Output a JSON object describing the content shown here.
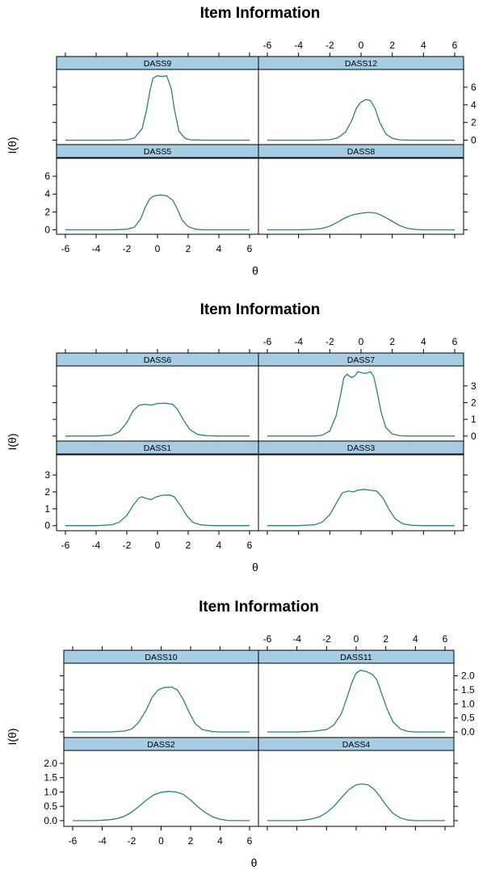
{
  "colors": {
    "strip": "#a6cde3",
    "curve": "#2e7f7b"
  },
  "chart_data": [
    {
      "type": "line",
      "title": "Item Information",
      "xlabel": "θ",
      "ylabel": "I(θ)",
      "xlim": [
        -6,
        6
      ],
      "ylim": [
        -0.5,
        8
      ],
      "x_ticks": [
        -6,
        -4,
        -2,
        0,
        2,
        4,
        6
      ],
      "x_tick_labels": [
        "-6",
        "-4",
        "-2",
        "0",
        "2",
        "4",
        "6"
      ],
      "y_ticks": [
        0,
        2,
        4,
        6
      ],
      "y_tick_labels": [
        "0",
        "2",
        "4",
        "6"
      ],
      "panels": [
        {
          "name": "DASS9",
          "position": "top-left",
          "curve": [
            [
              -6,
              0
            ],
            [
              -3,
              0
            ],
            [
              -2,
              0.04
            ],
            [
              -1.5,
              0.25
            ],
            [
              -1,
              1.3
            ],
            [
              -0.7,
              3.5
            ],
            [
              -0.5,
              5.5
            ],
            [
              -0.3,
              7.0
            ],
            [
              0,
              7.3
            ],
            [
              0.3,
              7.2
            ],
            [
              0.6,
              7.3
            ],
            [
              0.9,
              5.8
            ],
            [
              1.1,
              3.5
            ],
            [
              1.4,
              1.0
            ],
            [
              1.8,
              0.2
            ],
            [
              2.2,
              0.03
            ],
            [
              3,
              0
            ],
            [
              6,
              0
            ]
          ]
        },
        {
          "name": "DASS12",
          "position": "top-right",
          "curve": [
            [
              -6,
              0
            ],
            [
              -3,
              0
            ],
            [
              -2,
              0.05
            ],
            [
              -1.5,
              0.25
            ],
            [
              -1,
              0.9
            ],
            [
              -0.6,
              2.2
            ],
            [
              -0.3,
              3.6
            ],
            [
              0,
              4.3
            ],
            [
              0.3,
              4.6
            ],
            [
              0.6,
              4.5
            ],
            [
              0.9,
              3.6
            ],
            [
              1.2,
              2.0
            ],
            [
              1.6,
              0.7
            ],
            [
              2,
              0.2
            ],
            [
              2.5,
              0.04
            ],
            [
              3,
              0
            ],
            [
              6,
              0
            ]
          ]
        },
        {
          "name": "DASS5",
          "position": "bottom-left",
          "curve": [
            [
              -6,
              0
            ],
            [
              -3,
              0
            ],
            [
              -2,
              0.06
            ],
            [
              -1.5,
              0.3
            ],
            [
              -1.1,
              1.2
            ],
            [
              -0.8,
              2.5
            ],
            [
              -0.5,
              3.5
            ],
            [
              -0.2,
              3.8
            ],
            [
              0.2,
              3.9
            ],
            [
              0.6,
              3.8
            ],
            [
              1,
              3.3
            ],
            [
              1.3,
              2.3
            ],
            [
              1.6,
              1.1
            ],
            [
              2,
              0.35
            ],
            [
              2.5,
              0.06
            ],
            [
              3,
              0
            ],
            [
              6,
              0
            ]
          ]
        },
        {
          "name": "DASS8",
          "position": "bottom-right",
          "curve": [
            [
              -6,
              0
            ],
            [
              -4,
              0
            ],
            [
              -3,
              0.05
            ],
            [
              -2.5,
              0.15
            ],
            [
              -2,
              0.4
            ],
            [
              -1.5,
              0.85
            ],
            [
              -1,
              1.35
            ],
            [
              -0.5,
              1.7
            ],
            [
              0,
              1.85
            ],
            [
              0.5,
              1.95
            ],
            [
              1,
              1.85
            ],
            [
              1.5,
              1.45
            ],
            [
              2,
              0.95
            ],
            [
              2.5,
              0.45
            ],
            [
              3,
              0.15
            ],
            [
              3.5,
              0.04
            ],
            [
              4,
              0
            ],
            [
              6,
              0
            ]
          ]
        }
      ]
    },
    {
      "type": "line",
      "title": "Item Information",
      "xlabel": "θ",
      "ylabel": "I(θ)",
      "xlim": [
        -6,
        6
      ],
      "ylim": [
        -0.3,
        4.2
      ],
      "x_ticks": [
        -6,
        -4,
        -2,
        0,
        2,
        4,
        6
      ],
      "x_tick_labels": [
        "-6",
        "-4",
        "-2",
        "0",
        "2",
        "4",
        "6"
      ],
      "y_ticks": [
        0,
        1,
        2,
        3
      ],
      "y_tick_labels": [
        "0",
        "1",
        "2",
        "3"
      ],
      "panels": [
        {
          "name": "DASS6",
          "position": "top-left",
          "curve": [
            [
              -6,
              0
            ],
            [
              -4,
              0
            ],
            [
              -3,
              0.05
            ],
            [
              -2.5,
              0.25
            ],
            [
              -2,
              0.8
            ],
            [
              -1.6,
              1.5
            ],
            [
              -1.2,
              1.85
            ],
            [
              -0.8,
              1.9
            ],
            [
              -0.4,
              1.85
            ],
            [
              0,
              1.95
            ],
            [
              0.5,
              1.97
            ],
            [
              1,
              1.9
            ],
            [
              1.3,
              1.6
            ],
            [
              1.7,
              0.95
            ],
            [
              2.1,
              0.4
            ],
            [
              2.6,
              0.1
            ],
            [
              3.2,
              0.02
            ],
            [
              4,
              0
            ],
            [
              6,
              0
            ]
          ]
        },
        {
          "name": "DASS7",
          "position": "top-right",
          "curve": [
            [
              -6,
              0
            ],
            [
              -3,
              0
            ],
            [
              -2.5,
              0.05
            ],
            [
              -2,
              0.3
            ],
            [
              -1.6,
              1.2
            ],
            [
              -1.3,
              2.5
            ],
            [
              -1.1,
              3.5
            ],
            [
              -0.9,
              3.7
            ],
            [
              -0.6,
              3.5
            ],
            [
              -0.4,
              3.6
            ],
            [
              -0.2,
              3.85
            ],
            [
              0,
              3.8
            ],
            [
              0.3,
              3.75
            ],
            [
              0.6,
              3.85
            ],
            [
              0.8,
              3.6
            ],
            [
              1,
              2.8
            ],
            [
              1.3,
              1.4
            ],
            [
              1.6,
              0.5
            ],
            [
              2,
              0.12
            ],
            [
              2.5,
              0.02
            ],
            [
              3,
              0
            ],
            [
              6,
              0
            ]
          ]
        },
        {
          "name": "DASS1",
          "position": "bottom-left",
          "curve": [
            [
              -6,
              0
            ],
            [
              -4,
              0
            ],
            [
              -3,
              0.05
            ],
            [
              -2.5,
              0.2
            ],
            [
              -2,
              0.6
            ],
            [
              -1.6,
              1.2
            ],
            [
              -1.2,
              1.65
            ],
            [
              -1,
              1.7
            ],
            [
              -0.7,
              1.6
            ],
            [
              -0.4,
              1.55
            ],
            [
              -0.1,
              1.7
            ],
            [
              0.3,
              1.8
            ],
            [
              0.8,
              1.82
            ],
            [
              1.1,
              1.7
            ],
            [
              1.5,
              1.2
            ],
            [
              1.9,
              0.6
            ],
            [
              2.3,
              0.2
            ],
            [
              2.8,
              0.05
            ],
            [
              3.5,
              0
            ],
            [
              6,
              0
            ]
          ]
        },
        {
          "name": "DASS3",
          "position": "bottom-right",
          "curve": [
            [
              -6,
              0
            ],
            [
              -4,
              0
            ],
            [
              -3,
              0.05
            ],
            [
              -2.5,
              0.2
            ],
            [
              -2,
              0.65
            ],
            [
              -1.6,
              1.3
            ],
            [
              -1.2,
              1.95
            ],
            [
              -0.8,
              2.05
            ],
            [
              -0.5,
              2.0
            ],
            [
              -0.2,
              2.1
            ],
            [
              0.2,
              2.15
            ],
            [
              0.6,
              2.1
            ],
            [
              1,
              2.05
            ],
            [
              1.4,
              1.65
            ],
            [
              1.8,
              0.95
            ],
            [
              2.2,
              0.4
            ],
            [
              2.7,
              0.1
            ],
            [
              3.3,
              0.02
            ],
            [
              4,
              0
            ],
            [
              6,
              0
            ]
          ]
        }
      ]
    },
    {
      "type": "line",
      "title": "Item Information",
      "xlabel": "θ",
      "ylabel": "I(θ)",
      "xlim": [
        -6,
        6
      ],
      "ylim": [
        -0.2,
        2.45
      ],
      "x_ticks": [
        -6,
        -4,
        -2,
        0,
        2,
        4,
        6
      ],
      "x_tick_labels": [
        "-6",
        "-4",
        "-2",
        "0",
        "2",
        "4",
        "6"
      ],
      "y_ticks": [
        0,
        0.5,
        1,
        1.5,
        2
      ],
      "y_tick_labels": [
        "0.0",
        "0.5",
        "1.0",
        "1.5",
        "2.0"
      ],
      "panels": [
        {
          "name": "DASS10",
          "position": "top-left",
          "curve": [
            [
              -6,
              0
            ],
            [
              -3.5,
              0
            ],
            [
              -2.5,
              0.03
            ],
            [
              -2,
              0.1
            ],
            [
              -1.5,
              0.35
            ],
            [
              -1,
              0.8
            ],
            [
              -0.6,
              1.25
            ],
            [
              -0.2,
              1.5
            ],
            [
              0.2,
              1.58
            ],
            [
              0.7,
              1.6
            ],
            [
              1.1,
              1.5
            ],
            [
              1.5,
              1.15
            ],
            [
              1.9,
              0.7
            ],
            [
              2.3,
              0.3
            ],
            [
              2.8,
              0.08
            ],
            [
              3.5,
              0.01
            ],
            [
              4,
              0
            ],
            [
              6,
              0
            ]
          ]
        },
        {
          "name": "DASS11",
          "position": "top-right",
          "curve": [
            [
              -6,
              0
            ],
            [
              -4,
              0
            ],
            [
              -3,
              0.02
            ],
            [
              -2,
              0.08
            ],
            [
              -1.5,
              0.25
            ],
            [
              -1,
              0.65
            ],
            [
              -0.6,
              1.25
            ],
            [
              -0.3,
              1.75
            ],
            [
              0,
              2.1
            ],
            [
              0.3,
              2.2
            ],
            [
              0.7,
              2.15
            ],
            [
              1.1,
              2.05
            ],
            [
              1.4,
              1.85
            ],
            [
              1.7,
              1.4
            ],
            [
              2.1,
              0.8
            ],
            [
              2.5,
              0.35
            ],
            [
              3,
              0.1
            ],
            [
              3.5,
              0.02
            ],
            [
              4,
              0
            ],
            [
              6,
              0
            ]
          ]
        },
        {
          "name": "DASS2",
          "position": "bottom-left",
          "curve": [
            [
              -6,
              0
            ],
            [
              -4.5,
              0
            ],
            [
              -3.5,
              0.03
            ],
            [
              -3,
              0.07
            ],
            [
              -2.5,
              0.15
            ],
            [
              -2,
              0.3
            ],
            [
              -1.5,
              0.5
            ],
            [
              -1,
              0.72
            ],
            [
              -0.5,
              0.9
            ],
            [
              0,
              0.99
            ],
            [
              0.5,
              1.02
            ],
            [
              1,
              1.0
            ],
            [
              1.5,
              0.92
            ],
            [
              2,
              0.72
            ],
            [
              2.5,
              0.48
            ],
            [
              3,
              0.28
            ],
            [
              3.5,
              0.13
            ],
            [
              4,
              0.05
            ],
            [
              4.5,
              0.01
            ],
            [
              5,
              0
            ],
            [
              6,
              0
            ]
          ]
        },
        {
          "name": "DASS4",
          "position": "bottom-right",
          "curve": [
            [
              -6,
              0
            ],
            [
              -4,
              0
            ],
            [
              -3.5,
              0.02
            ],
            [
              -3,
              0.06
            ],
            [
              -2.5,
              0.13
            ],
            [
              -2,
              0.28
            ],
            [
              -1.5,
              0.5
            ],
            [
              -1,
              0.8
            ],
            [
              -0.5,
              1.08
            ],
            [
              0,
              1.25
            ],
            [
              0.4,
              1.28
            ],
            [
              0.8,
              1.25
            ],
            [
              1.2,
              1.1
            ],
            [
              1.6,
              0.85
            ],
            [
              2,
              0.55
            ],
            [
              2.5,
              0.25
            ],
            [
              3,
              0.09
            ],
            [
              3.5,
              0.02
            ],
            [
              4,
              0
            ],
            [
              6,
              0
            ]
          ]
        }
      ]
    }
  ]
}
